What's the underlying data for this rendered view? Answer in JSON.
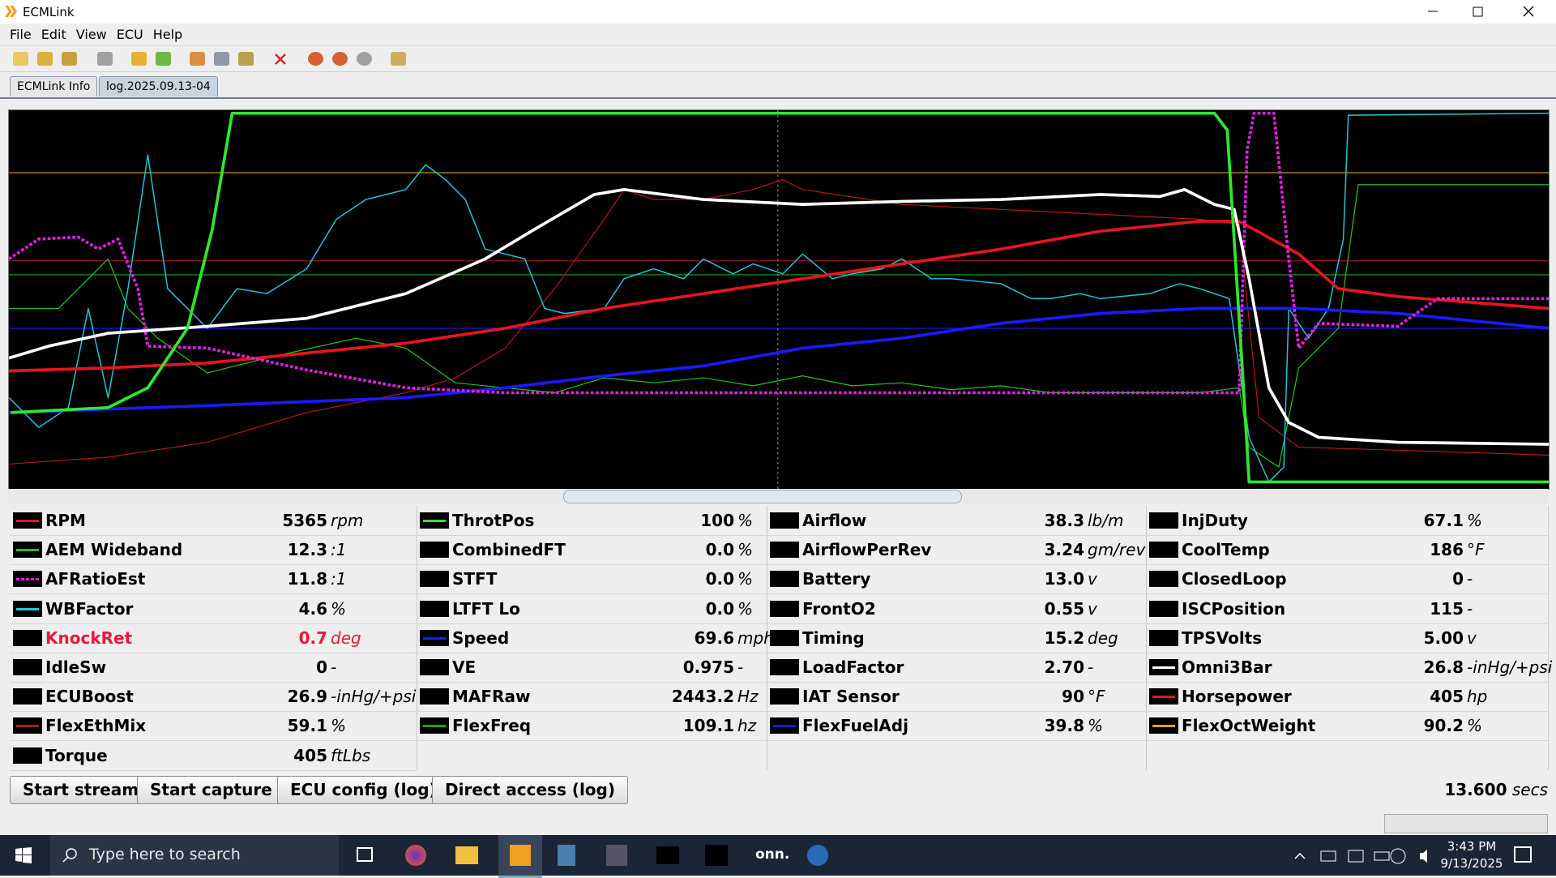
{
  "window": {
    "title": "ECMLink"
  },
  "menu": [
    "File",
    "Edit",
    "View",
    "ECU",
    "Help"
  ],
  "tabs": [
    "ECMLink Info",
    "log.2025.09.13-04"
  ],
  "parameters": [
    [
      {
        "name": "RPM",
        "value": "5365",
        "unit": "rpm",
        "color": "#e8141c"
      },
      {
        "name": "AEM Wideband",
        "value": "12.3",
        "unit": ":1",
        "color": "#22c322"
      },
      {
        "name": "AFRatioEst",
        "value": "11.8",
        "unit": ":1",
        "color": "#e020e0",
        "dashed": true
      },
      {
        "name": "WBFactor",
        "value": "4.6",
        "unit": "%",
        "color": "#22c8d8"
      },
      {
        "name": "KnockRet",
        "value": "0.7",
        "unit": "deg",
        "text_color": "#e8173c"
      },
      {
        "name": "IdleSw",
        "value": "0",
        "unit": "-"
      },
      {
        "name": "ECUBoost",
        "value": "26.9",
        "unit": "-inHg/+psi"
      },
      {
        "name": "FlexEthMix",
        "value": "59.1",
        "unit": "%",
        "color": "#b01818"
      },
      {
        "name": "Torque",
        "value": "405",
        "unit": "ftLbs"
      }
    ],
    [
      {
        "name": "ThrotPos",
        "value": "100",
        "unit": "%",
        "color": "#2ee82e"
      },
      {
        "name": "CombinedFT",
        "value": "0.0",
        "unit": "%"
      },
      {
        "name": "STFT",
        "value": "0.0",
        "unit": "%"
      },
      {
        "name": "LTFT Lo",
        "value": "0.0",
        "unit": "%"
      },
      {
        "name": "Speed",
        "value": "69.6",
        "unit": "mph",
        "color": "#1a1aff"
      },
      {
        "name": "VE",
        "value": "0.975",
        "unit": "-"
      },
      {
        "name": "MAFRaw",
        "value": "2443.2",
        "unit": "Hz"
      },
      {
        "name": "FlexFreq",
        "value": "109.1",
        "unit": "hz",
        "color": "#1aa81a"
      }
    ],
    [
      {
        "name": "Airflow",
        "value": "38.3",
        "unit": "lb/m"
      },
      {
        "name": "AirflowPerRev",
        "value": "3.24",
        "unit": "gm/rev"
      },
      {
        "name": "Battery",
        "value": "13.0",
        "unit": "v"
      },
      {
        "name": "FrontO2",
        "value": "0.55",
        "unit": "v"
      },
      {
        "name": "Timing",
        "value": "15.2",
        "unit": "deg"
      },
      {
        "name": "LoadFactor",
        "value": "2.70",
        "unit": "-"
      },
      {
        "name": "IAT Sensor",
        "value": "90",
        "unit": "°F"
      },
      {
        "name": "FlexFuelAdj",
        "value": "39.8",
        "unit": "%",
        "color": "#1a1ad8"
      }
    ],
    [
      {
        "name": "InjDuty",
        "value": "67.1",
        "unit": "%"
      },
      {
        "name": "CoolTemp",
        "value": "186",
        "unit": "°F"
      },
      {
        "name": "ClosedLoop",
        "value": "0",
        "unit": "-"
      },
      {
        "name": "ISCPosition",
        "value": "115",
        "unit": "-"
      },
      {
        "name": "TPSVolts",
        "value": "5.00",
        "unit": "v"
      },
      {
        "name": "Omni3Bar",
        "value": "26.8",
        "unit": "-inHg/+psi",
        "color": "#ffffff"
      },
      {
        "name": "Horsepower",
        "value": "405",
        "unit": "hp",
        "color": "#d81818"
      },
      {
        "name": "FlexOctWeight",
        "value": "90.2",
        "unit": "%",
        "color": "#e0a020"
      }
    ]
  ],
  "buttons": [
    "Start stream",
    "Start capture",
    "ECU config (log)",
    "Direct access (log)"
  ],
  "elapsed": {
    "value": "13.600",
    "unit": "secs"
  },
  "taskbar": {
    "search": "Type here to search",
    "app_label": "onn.",
    "time": "3:43 PM",
    "date": "9/13/2025"
  }
}
